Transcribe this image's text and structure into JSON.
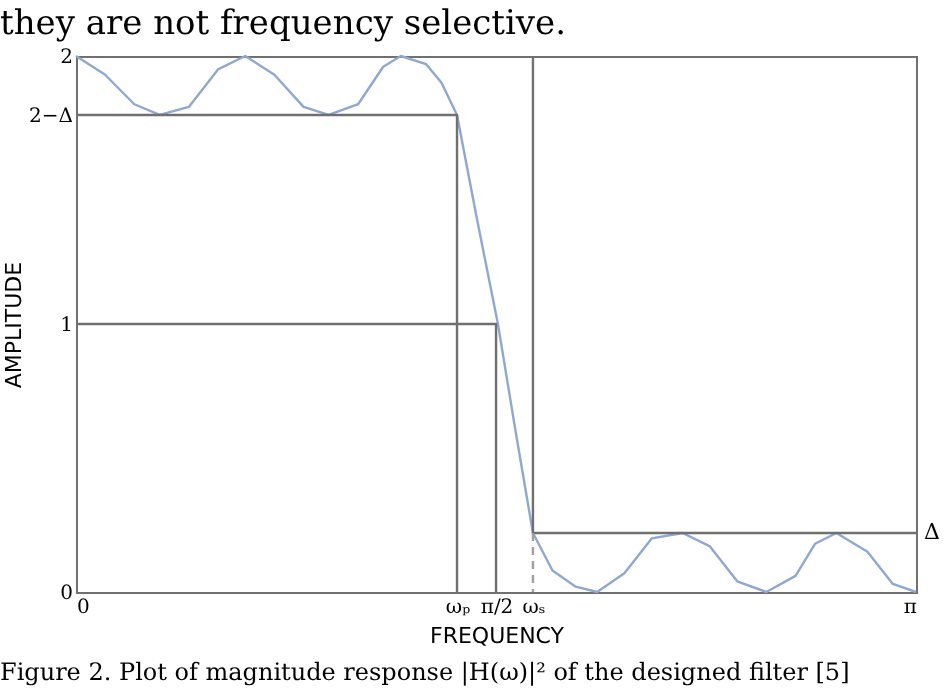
{
  "chart_data": {
    "type": "line",
    "xlabel": "FREQUENCY",
    "ylabel": "AMPLITUDE",
    "annotations": [
      "they are not frequency selective.",
      "Figure 2. Plot of magnitude response |H(ω)|² of the designed filter [5]",
      {
        "text": "Δ",
        "x": 3.1416,
        "y": 0.22
      }
    ],
    "xlim": [
      0,
      3.1416
    ],
    "ylim": [
      0,
      2
    ],
    "xticks": [
      0,
      {
        "value": 1.425,
        "label": "ωₚ"
      },
      {
        "value": 1.571,
        "label": "π/2"
      },
      {
        "value": 1.709,
        "label": "ωₛ"
      },
      {
        "value": 3.1416,
        "label": "π"
      }
    ],
    "yticks": [
      0,
      1,
      {
        "value": 1.78,
        "label": "2−Δ"
      },
      2
    ],
    "line_style": "solid",
    "series": [
      {
        "color": "#8fa8d0",
        "x": [
          0,
          0.109,
          0.218,
          0.313,
          0.422,
          0.531,
          0.633,
          0.742,
          0.851,
          0.945,
          1.055,
          1.149,
          1.215,
          1.309,
          1.367,
          1.425,
          1.498,
          1.578,
          1.644,
          1.709,
          1.782,
          1.869,
          1.949,
          2.051,
          2.153,
          2.269,
          2.371,
          2.473,
          2.582,
          2.691,
          2.764,
          2.844,
          2.96,
          3.055,
          3.1416
        ],
        "values": [
          2,
          1.93,
          1.82,
          1.78,
          1.81,
          1.95,
          2,
          1.93,
          1.81,
          1.78,
          1.82,
          1.96,
          2,
          1.97,
          1.9,
          1.78,
          1.4,
          1.0,
          0.6,
          0.22,
          0.08,
          0.02,
          0,
          0.07,
          0.2,
          0.22,
          0.17,
          0.04,
          0,
          0.06,
          0.18,
          0.22,
          0.15,
          0.03,
          0
        ]
      },
      {
        "color": "#707070",
        "x": [
          0,
          1.425,
          1.425
        ],
        "values": [
          1.78,
          1.78,
          0
        ]
      },
      {
        "color": "#707070",
        "x": [
          0,
          1.571,
          1.571
        ],
        "values": [
          1,
          1,
          0
        ]
      },
      {
        "color": "#707070",
        "x": [
          1.709,
          1.709,
          3.1416
        ],
        "values": [
          2,
          0.22,
          0.22
        ]
      },
      {
        "color": "#a0a0a0",
        "x": [
          1.709,
          1.709
        ],
        "values": [
          0.22,
          0
        ],
        "line_style": "dashed"
      }
    ]
  }
}
